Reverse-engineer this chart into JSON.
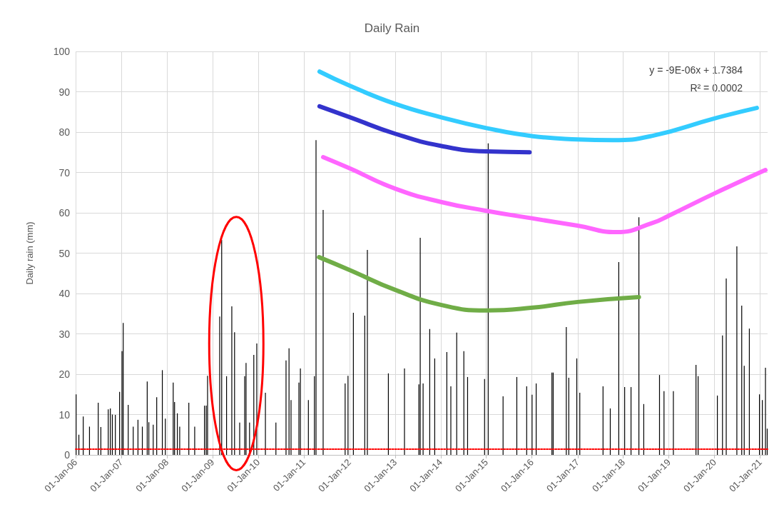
{
  "chart_data": {
    "type": "bar",
    "title": "Daily Rain",
    "ylabel": "Daily rain (mm)",
    "xlim": [
      "2006-01-01",
      "2021-03-01"
    ],
    "xticks": [
      {
        "value": "2006-01-01",
        "label": "01-Jan-06"
      },
      {
        "value": "2007-01-01",
        "label": "01-Jan-07"
      },
      {
        "value": "2008-01-01",
        "label": "01-Jan-08"
      },
      {
        "value": "2009-01-01",
        "label": "01-Jan-09"
      },
      {
        "value": "2010-01-01",
        "label": "01-Jan-10"
      },
      {
        "value": "2011-01-01",
        "label": "01-Jan-11"
      },
      {
        "value": "2012-01-01",
        "label": "01-Jan-12"
      },
      {
        "value": "2013-01-01",
        "label": "01-Jan-13"
      },
      {
        "value": "2014-01-01",
        "label": "01-Jan-14"
      },
      {
        "value": "2015-01-01",
        "label": "01-Jan-15"
      },
      {
        "value": "2016-01-01",
        "label": "01-Jan-16"
      },
      {
        "value": "2017-01-01",
        "label": "01-Jan-17"
      },
      {
        "value": "2018-01-01",
        "label": "01-Jan-18"
      },
      {
        "value": "2019-01-01",
        "label": "01-Jan-19"
      },
      {
        "value": "2020-01-01",
        "label": "01-Jan-20"
      },
      {
        "value": "2021-01-01",
        "label": "01-Jan-21"
      }
    ],
    "ylim": [
      0,
      100
    ],
    "yticks": [
      0,
      10,
      20,
      30,
      40,
      50,
      60,
      70,
      80,
      90,
      100
    ],
    "grid": true,
    "annotations": [
      "y = -9E-06x + 1.7384",
      "R² = 0.0002"
    ],
    "series": [
      {
        "color": "#000000",
        "x": [
          "2006-01-05",
          "2006-01-27",
          "2006-03-03",
          "2006-04-22",
          "2006-07-01",
          "2006-07-22",
          "2006-09-19",
          "2006-10-06",
          "2006-10-22",
          "2006-11-15",
          "2006-12-19",
          "2007-01-07",
          "2007-01-17",
          "2007-02-26",
          "2007-04-07",
          "2007-05-15",
          "2007-06-19",
          "2007-07-28",
          "2007-08-10",
          "2007-09-14",
          "2007-10-12",
          "2007-11-26",
          "2007-12-20",
          "2008-02-21",
          "2008-03-03",
          "2008-03-25",
          "2008-04-13",
          "2008-06-25",
          "2008-08-11",
          "2008-10-28",
          "2008-11-11",
          "2008-11-22",
          "2009-01-03",
          "2009-02-27",
          "2009-03-15",
          "2009-04-23",
          "2009-06-04",
          "2009-06-26",
          "2009-08-06",
          "2009-09-15",
          "2009-09-26",
          "2009-10-24",
          "2009-11-27",
          "2009-12-21",
          "2010-02-06",
          "2010-02-28",
          "2010-05-23",
          "2010-08-12",
          "2010-09-05",
          "2010-09-21",
          "2010-11-23",
          "2010-12-05",
          "2011-02-07",
          "2011-03-27",
          "2011-04-09",
          "2011-06-05",
          "2011-11-28",
          "2011-12-21",
          "2012-02-02",
          "2012-05-03",
          "2012-05-24",
          "2012-11-08",
          "2013-03-17",
          "2013-07-10",
          "2013-07-21",
          "2013-08-13",
          "2013-10-05",
          "2013-11-14",
          "2014-02-19",
          "2014-03-23",
          "2014-05-09",
          "2014-07-05",
          "2014-08-04",
          "2014-12-18",
          "2015-01-16",
          "2015-05-15",
          "2015-09-02",
          "2015-11-20",
          "2016-01-02",
          "2016-02-04",
          "2016-06-09",
          "2016-06-19",
          "2016-10-02",
          "2016-10-22",
          "2016-12-25",
          "2017-01-18",
          "2017-07-23",
          "2017-09-19",
          "2017-11-26",
          "2018-01-12",
          "2018-03-04",
          "2018-05-06",
          "2018-06-14",
          "2018-10-18",
          "2018-11-23",
          "2019-02-06",
          "2019-08-06",
          "2019-08-23",
          "2020-01-24",
          "2020-03-05",
          "2020-04-04",
          "2020-06-28",
          "2020-08-06",
          "2020-08-26",
          "2020-10-06",
          "2020-12-26",
          "2021-01-18",
          "2021-02-12",
          "2021-02-26"
        ],
        "values": [
          15,
          5,
          9.5,
          7,
          12.9,
          6.9,
          11.3,
          11.5,
          10,
          9.9,
          15.6,
          25.7,
          32.7,
          12.4,
          7,
          8.7,
          7,
          18.2,
          8.1,
          7.5,
          14.3,
          21,
          9,
          17.9,
          13.1,
          10.3,
          7,
          12.9,
          7,
          12.2,
          12.2,
          19.6,
          null,
          34.3,
          53.3,
          19.5,
          36.8,
          30.4,
          8,
          19.5,
          22.8,
          8,
          24.8,
          27.6,
          null,
          15.4,
          8,
          23.4,
          26.4,
          13.6,
          17.9,
          21.4,
          13.6,
          19.5,
          78,
          60.7,
          17.7,
          19.6,
          35.2,
          34.5,
          50.8,
          20.2,
          21.4,
          17.5,
          53.8,
          17.7,
          31.2,
          23.9,
          25.5,
          17,
          30.3,
          25.7,
          19.3,
          18.8,
          77.2,
          14.5,
          19.3,
          17,
          14.9,
          17.7,
          20.4,
          20.4,
          31.7,
          19.1,
          23.9,
          15.4,
          17,
          11.5,
          47.8,
          16.8,
          16.8,
          58.9,
          12.6,
          19.8,
          15.8,
          15.8,
          22.3,
          19.5,
          14.7,
          29.6,
          43.7,
          51.7,
          37,
          22.1,
          31.3,
          15,
          13.6,
          21.6,
          6.5
        ]
      },
      {
        "type": "line",
        "color": "#33ccff",
        "x": [
          "2011-05-07",
          "2012-01-04",
          "2013-01-01",
          "2014-01-01",
          "2015-01-01",
          "2016-01-08",
          "2017-01-01",
          "2017-10-07",
          "2018-08-24",
          "2020-01-01",
          "2020-12-05"
        ],
        "values": [
          95,
          91.5,
          87,
          83.7,
          81,
          79,
          78.2,
          78,
          79.1,
          83.4,
          86
        ]
      },
      {
        "type": "line",
        "color": "#3333cc",
        "x": [
          "2011-05-07",
          "2012-01-04",
          "2013-01-01",
          "2014-01-01",
          "2015-01-01",
          "2015-12-13"
        ],
        "values": [
          86.4,
          83.7,
          79.6,
          76.6,
          75.2,
          75
        ]
      },
      {
        "type": "line",
        "color": "#ff66ff",
        "x": [
          "2011-06-05",
          "2012-01-04",
          "2013-01-01",
          "2014-01-01",
          "2015-01-01",
          "2016-01-08",
          "2017-01-01",
          "2017-11-10",
          "2018-08-24",
          "2019-01-01",
          "2020-01-01",
          "2021-02-12"
        ],
        "values": [
          73.8,
          71,
          66,
          62.7,
          60.5,
          58.6,
          56.8,
          55.2,
          57.5,
          59.3,
          64.8,
          70.6
        ]
      },
      {
        "type": "line",
        "color": "#70ad47",
        "x": [
          "2011-05-03",
          "2012-01-04",
          "2013-01-01",
          "2014-01-01",
          "2015-01-01",
          "2016-01-08",
          "2017-01-01",
          "2018-05-06"
        ],
        "values": [
          49,
          45.8,
          40.9,
          37.2,
          35.8,
          36.5,
          37.9,
          39.1
        ]
      },
      {
        "type": "line",
        "color": "#ff0000",
        "line_style": "dotted",
        "x": [
          "2006-01-01",
          "2021-03-01"
        ],
        "values": [
          1.4,
          1.4
        ]
      }
    ]
  }
}
